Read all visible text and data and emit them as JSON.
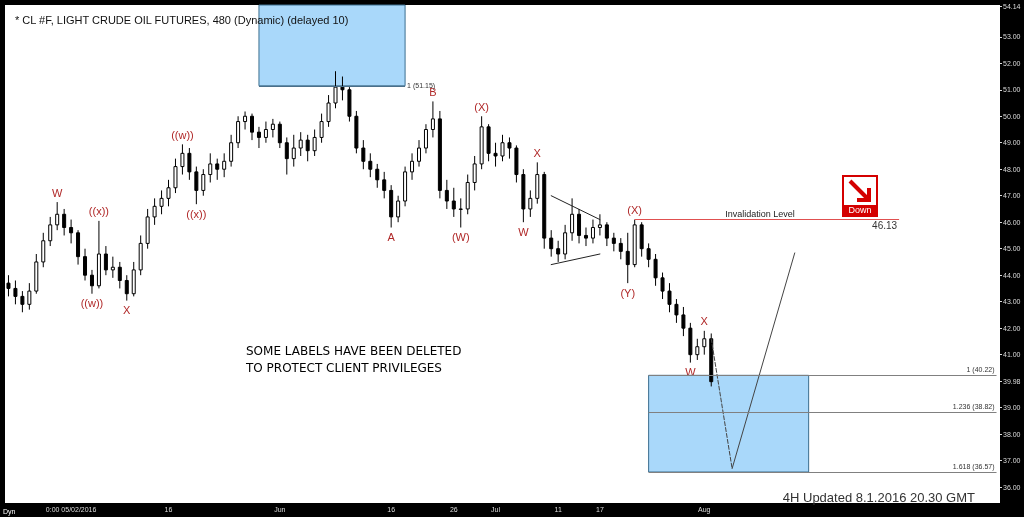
{
  "chart_data": {
    "type": "candlestick",
    "title": "* CL #F, LIGHT CRUDE OIL FUTURES, 480 (Dynamic) (delayed 10)",
    "categories": [
      null,
      null,
      null,
      null,
      null,
      null,
      null,
      null,
      null,
      "0:00 05/02/2016",
      null,
      null,
      null,
      null,
      null,
      null,
      null,
      null,
      null,
      null,
      null,
      null,
      null,
      "16",
      null,
      null,
      null,
      null,
      null,
      null,
      null,
      null,
      null,
      null,
      null,
      null,
      null,
      null,
      null,
      "Jun",
      null,
      null,
      null,
      null,
      null,
      null,
      null,
      null,
      null,
      null,
      null,
      null,
      null,
      null,
      null,
      "16",
      null,
      null,
      null,
      null,
      null,
      null,
      null,
      null,
      "26",
      null,
      null,
      null,
      null,
      null,
      "Jul",
      null,
      null,
      null,
      null,
      null,
      null,
      null,
      null,
      "11",
      null,
      null,
      null,
      null,
      null,
      "17",
      null,
      null,
      null,
      null,
      null,
      null,
      null,
      null,
      null,
      null,
      null,
      null,
      null,
      null,
      "Aug",
      null,
      null,
      null,
      null,
      null,
      null,
      null,
      null,
      null,
      null,
      null,
      null,
      null,
      null,
      null,
      null,
      null,
      null,
      null,
      null,
      null,
      null,
      null,
      null,
      null,
      null,
      null,
      null,
      null,
      null,
      null,
      null,
      null,
      null,
      null,
      null,
      null,
      null,
      null,
      null,
      null,
      null
    ],
    "ohlc": [
      [
        43.7,
        44.0,
        43.2,
        43.5
      ],
      [
        43.5,
        43.8,
        42.9,
        43.2
      ],
      [
        43.2,
        43.4,
        42.6,
        42.9
      ],
      [
        42.9,
        43.7,
        42.7,
        43.4
      ],
      [
        43.4,
        44.8,
        43.3,
        44.5
      ],
      [
        44.5,
        45.6,
        44.3,
        45.3
      ],
      [
        45.3,
        46.2,
        45.1,
        45.9
      ],
      [
        45.9,
        46.76,
        45.7,
        46.3
      ],
      [
        46.3,
        46.5,
        45.5,
        45.8
      ],
      [
        45.8,
        46.1,
        45.2,
        45.6
      ],
      [
        45.6,
        45.7,
        44.4,
        44.7
      ],
      [
        44.7,
        45.0,
        43.8,
        44.0
      ],
      [
        44.0,
        44.2,
        43.3,
        43.6
      ],
      [
        43.6,
        46.05,
        43.5,
        44.8
      ],
      [
        44.8,
        45.1,
        44.0,
        44.2
      ],
      [
        44.2,
        44.7,
        43.9,
        44.3
      ],
      [
        44.3,
        44.5,
        43.5,
        43.8
      ],
      [
        43.8,
        44.0,
        43.04,
        43.3
      ],
      [
        43.3,
        44.5,
        43.2,
        44.2
      ],
      [
        44.2,
        45.5,
        44.0,
        45.2
      ],
      [
        45.2,
        46.5,
        45.0,
        46.2
      ],
      [
        46.2,
        46.9,
        45.9,
        46.6
      ],
      [
        46.6,
        47.2,
        46.3,
        46.9
      ],
      [
        46.9,
        47.6,
        46.6,
        47.3
      ],
      [
        47.3,
        48.4,
        47.1,
        48.1
      ],
      [
        48.1,
        48.94,
        47.8,
        48.6
      ],
      [
        48.6,
        48.8,
        47.6,
        47.9
      ],
      [
        47.9,
        48.1,
        46.68,
        47.2
      ],
      [
        47.2,
        48.0,
        47.0,
        47.8
      ],
      [
        47.8,
        48.6,
        47.5,
        48.2
      ],
      [
        48.2,
        48.4,
        47.6,
        48.0
      ],
      [
        48.0,
        48.6,
        47.7,
        48.3
      ],
      [
        48.3,
        49.3,
        48.1,
        49.0
      ],
      [
        49.0,
        50.0,
        48.8,
        49.8
      ],
      [
        49.8,
        50.18,
        49.5,
        50.0
      ],
      [
        50.0,
        50.1,
        49.1,
        49.4
      ],
      [
        49.4,
        49.6,
        48.8,
        49.2
      ],
      [
        49.2,
        49.8,
        49.0,
        49.5
      ],
      [
        49.5,
        49.9,
        49.2,
        49.7
      ],
      [
        49.7,
        49.8,
        48.8,
        49.0
      ],
      [
        49.0,
        49.2,
        47.8,
        48.4
      ],
      [
        48.4,
        49.3,
        48.1,
        48.8
      ],
      [
        48.8,
        49.4,
        48.5,
        49.1
      ],
      [
        49.1,
        49.3,
        48.3,
        48.7
      ],
      [
        48.7,
        49.5,
        48.5,
        49.2
      ],
      [
        49.2,
        50.1,
        49.0,
        49.8
      ],
      [
        49.8,
        50.8,
        49.6,
        50.5
      ],
      [
        50.5,
        51.7,
        50.3,
        51.1
      ],
      [
        51.1,
        51.5,
        50.6,
        51.0
      ],
      [
        51.0,
        51.1,
        49.8,
        50.0
      ],
      [
        50.0,
        50.2,
        48.6,
        48.8
      ],
      [
        48.8,
        49.1,
        48.0,
        48.3
      ],
      [
        48.3,
        48.6,
        47.7,
        48.0
      ],
      [
        48.0,
        48.2,
        47.3,
        47.6
      ],
      [
        47.6,
        47.9,
        46.9,
        47.2
      ],
      [
        47.2,
        47.4,
        45.8,
        46.2
      ],
      [
        46.2,
        47.0,
        46.0,
        46.8
      ],
      [
        46.8,
        48.1,
        46.6,
        47.9
      ],
      [
        47.9,
        48.6,
        47.6,
        48.3
      ],
      [
        48.3,
        49.1,
        48.1,
        48.8
      ],
      [
        48.8,
        49.7,
        48.6,
        49.5
      ],
      [
        49.5,
        50.56,
        49.2,
        49.9
      ],
      [
        49.9,
        50.2,
        46.9,
        47.2
      ],
      [
        47.2,
        47.6,
        46.5,
        46.8
      ],
      [
        46.8,
        47.3,
        46.2,
        46.5
      ],
      [
        46.5,
        46.9,
        45.8,
        46.5
      ],
      [
        46.5,
        47.8,
        46.3,
        47.5
      ],
      [
        47.5,
        48.5,
        47.2,
        48.2
      ],
      [
        48.2,
        50.0,
        48.0,
        49.6
      ],
      [
        49.6,
        49.7,
        48.3,
        48.6
      ],
      [
        48.6,
        49.0,
        48.1,
        48.5
      ],
      [
        48.5,
        49.3,
        48.3,
        49.0
      ],
      [
        49.0,
        49.2,
        48.4,
        48.8
      ],
      [
        48.8,
        48.9,
        47.5,
        47.8
      ],
      [
        47.8,
        48.0,
        46.0,
        46.5
      ],
      [
        46.5,
        47.2,
        46.2,
        46.9
      ],
      [
        46.9,
        48.26,
        46.7,
        47.8
      ],
      [
        47.8,
        47.9,
        45.0,
        45.4
      ],
      [
        45.4,
        45.7,
        44.7,
        45.0
      ],
      [
        45.0,
        45.3,
        44.5,
        44.8
      ],
      [
        44.8,
        45.9,
        44.6,
        45.6
      ],
      [
        45.6,
        46.9,
        45.3,
        46.3
      ],
      [
        46.3,
        46.5,
        45.2,
        45.5
      ],
      [
        45.5,
        45.8,
        45.1,
        45.4
      ],
      [
        45.4,
        46.1,
        45.2,
        45.8
      ],
      [
        45.8,
        46.3,
        45.5,
        45.9
      ],
      [
        45.9,
        46.0,
        45.1,
        45.4
      ],
      [
        45.4,
        45.6,
        44.9,
        45.2
      ],
      [
        45.2,
        45.4,
        44.6,
        44.9
      ],
      [
        44.9,
        45.6,
        43.7,
        44.4
      ],
      [
        44.4,
        46.1,
        44.3,
        45.9
      ],
      [
        45.9,
        46.0,
        44.7,
        45.0
      ],
      [
        45.0,
        45.2,
        44.3,
        44.6
      ],
      [
        44.6,
        44.8,
        43.6,
        43.9
      ],
      [
        43.9,
        44.1,
        43.1,
        43.4
      ],
      [
        43.4,
        43.7,
        42.6,
        42.9
      ],
      [
        42.9,
        43.1,
        42.2,
        42.5
      ],
      [
        42.5,
        42.8,
        41.7,
        42.0
      ],
      [
        42.0,
        42.2,
        40.7,
        41.0
      ],
      [
        41.0,
        41.6,
        40.8,
        41.3
      ],
      [
        41.3,
        41.9,
        41.0,
        41.6
      ],
      [
        41.6,
        41.8,
        39.8,
        39.98
      ],
      null,
      null,
      null,
      null,
      null,
      null,
      null,
      null,
      null,
      null,
      null,
      null,
      null,
      null,
      null,
      null,
      null,
      null,
      null,
      null,
      null,
      null,
      null,
      null,
      null,
      null,
      null,
      null,
      null,
      null,
      null,
      null,
      null,
      null,
      null,
      null,
      null,
      null,
      null,
      null,
      null
    ],
    "series": [
      {
        "type": "line",
        "color": "#444444",
        "line_style": "dashed",
        "values": [
          null,
          null,
          null,
          null,
          null,
          null,
          null,
          null,
          null,
          null,
          null,
          null,
          null,
          null,
          null,
          null,
          null,
          null,
          null,
          null,
          null,
          null,
          null,
          null,
          null,
          null,
          null,
          null,
          null,
          null,
          null,
          null,
          null,
          null,
          null,
          null,
          null,
          null,
          null,
          null,
          null,
          null,
          null,
          null,
          null,
          null,
          null,
          null,
          null,
          null,
          null,
          null,
          null,
          null,
          null,
          null,
          null,
          null,
          null,
          null,
          null,
          null,
          null,
          null,
          null,
          null,
          null,
          null,
          null,
          null,
          null,
          null,
          null,
          null,
          null,
          null,
          null,
          null,
          null,
          null,
          null,
          null,
          null,
          null,
          null,
          null,
          null,
          null,
          null,
          null,
          null,
          null,
          null,
          null,
          null,
          null,
          null,
          null,
          null,
          null,
          null,
          41.6,
          null,
          null,
          36.7,
          null,
          null,
          null,
          null,
          null,
          null,
          null,
          null,
          null,
          null,
          null,
          null,
          null,
          null,
          null,
          null,
          null,
          null,
          null,
          null,
          null,
          null,
          null,
          null,
          null,
          null,
          null,
          null,
          null,
          null,
          null,
          null,
          null,
          null,
          null,
          null,
          null,
          null
        ]
      },
      {
        "type": "line",
        "color": "#444444",
        "line_style": "solid",
        "values": [
          null,
          null,
          null,
          null,
          null,
          null,
          null,
          null,
          null,
          null,
          null,
          null,
          null,
          null,
          null,
          null,
          null,
          null,
          null,
          null,
          null,
          null,
          null,
          null,
          null,
          null,
          null,
          null,
          null,
          null,
          null,
          null,
          null,
          null,
          null,
          null,
          null,
          null,
          null,
          null,
          null,
          null,
          null,
          null,
          null,
          null,
          null,
          null,
          null,
          null,
          null,
          null,
          null,
          null,
          null,
          null,
          null,
          null,
          null,
          null,
          null,
          null,
          null,
          null,
          null,
          null,
          null,
          null,
          null,
          null,
          null,
          null,
          null,
          null,
          null,
          null,
          null,
          null,
          null,
          null,
          null,
          null,
          null,
          null,
          null,
          null,
          null,
          null,
          null,
          null,
          null,
          null,
          null,
          null,
          null,
          null,
          null,
          null,
          null,
          null,
          null,
          null,
          null,
          null,
          36.7,
          null,
          null,
          null,
          null,
          null,
          null,
          null,
          null,
          44.84,
          null,
          null,
          null,
          null,
          null,
          null,
          null,
          null,
          null,
          null,
          null,
          null,
          null,
          null,
          null,
          null,
          null,
          null,
          null,
          null,
          null,
          null,
          null,
          null,
          null,
          null,
          null,
          null,
          null
        ]
      },
      {
        "type": "line",
        "color": "#222222",
        "line_style": "solid",
        "values": [
          null,
          null,
          null,
          null,
          null,
          null,
          null,
          null,
          null,
          null,
          null,
          null,
          null,
          null,
          null,
          null,
          null,
          null,
          null,
          null,
          null,
          null,
          null,
          null,
          null,
          null,
          null,
          null,
          null,
          null,
          null,
          null,
          null,
          null,
          null,
          null,
          null,
          null,
          null,
          null,
          null,
          null,
          null,
          null,
          null,
          null,
          null,
          null,
          null,
          null,
          null,
          null,
          null,
          null,
          null,
          null,
          null,
          null,
          null,
          null,
          null,
          null,
          null,
          null,
          null,
          null,
          null,
          null,
          null,
          null,
          null,
          null,
          null,
          null,
          null,
          null,
          null,
          null,
          47.0,
          null,
          null,
          null,
          null,
          null,
          null,
          46.1,
          null,
          null,
          null,
          null,
          null,
          null,
          null,
          null,
          null,
          null,
          null,
          null,
          null,
          null,
          null,
          null,
          null,
          null,
          null,
          null,
          null,
          null,
          null,
          null,
          null,
          null,
          null,
          null,
          null,
          null,
          null,
          null,
          null,
          null,
          null,
          null,
          null,
          null,
          null,
          null,
          null,
          null,
          null,
          null,
          null,
          null,
          null,
          null,
          null,
          null,
          null,
          null,
          null,
          null,
          null,
          null,
          null
        ]
      },
      {
        "type": "line",
        "color": "#222222",
        "line_style": "solid",
        "values": [
          null,
          null,
          null,
          null,
          null,
          null,
          null,
          null,
          null,
          null,
          null,
          null,
          null,
          null,
          null,
          null,
          null,
          null,
          null,
          null,
          null,
          null,
          null,
          null,
          null,
          null,
          null,
          null,
          null,
          null,
          null,
          null,
          null,
          null,
          null,
          null,
          null,
          null,
          null,
          null,
          null,
          null,
          null,
          null,
          null,
          null,
          null,
          null,
          null,
          null,
          null,
          null,
          null,
          null,
          null,
          null,
          null,
          null,
          null,
          null,
          null,
          null,
          null,
          null,
          null,
          null,
          null,
          null,
          null,
          null,
          null,
          null,
          null,
          null,
          null,
          null,
          null,
          null,
          44.4,
          null,
          null,
          null,
          null,
          null,
          null,
          44.8,
          null,
          null,
          null,
          null,
          null,
          null,
          null,
          null,
          null,
          null,
          null,
          null,
          null,
          null,
          null,
          null,
          null,
          null,
          null,
          null,
          null,
          null,
          null,
          null,
          null,
          null,
          null,
          null,
          null,
          null,
          null,
          null,
          null,
          null,
          null,
          null,
          null,
          null,
          null,
          null,
          null,
          null,
          null,
          null,
          null,
          null,
          null,
          null,
          null,
          null,
          null,
          null,
          null,
          null,
          null,
          null,
          null
        ]
      }
    ],
    "ylim": [
      35.4,
      54.2
    ],
    "yticks": [
      {
        "value": 36,
        "label": "36.00"
      },
      {
        "value": 37,
        "label": "37.00"
      },
      {
        "value": 38,
        "label": "38.00"
      },
      {
        "value": 39,
        "label": "39.00"
      },
      {
        "value": 39.98,
        "label": "39.98"
      },
      {
        "value": 41,
        "label": "41.00"
      },
      {
        "value": 42,
        "label": "42.00"
      },
      {
        "value": 43,
        "label": "43.00"
      },
      {
        "value": 44,
        "label": "44.00"
      },
      {
        "value": 45,
        "label": "45.00"
      },
      {
        "value": 46,
        "label": "46.00"
      },
      {
        "value": 47,
        "label": "47.00"
      },
      {
        "value": 48,
        "label": "48.00"
      },
      {
        "value": 49,
        "label": "49.00"
      },
      {
        "value": 50,
        "label": "50.00"
      },
      {
        "value": 51,
        "label": "51.00"
      },
      {
        "value": 52,
        "label": "52.00"
      },
      {
        "value": 53,
        "label": "53.00"
      },
      {
        "value": 54.14,
        "label": "54.14"
      }
    ],
    "ref_lines": [
      {
        "axis": "y",
        "value": 51.15,
        "label": "1 (51.15)",
        "color": "#4a6f8a"
      },
      {
        "axis": "y",
        "value": 46.13,
        "label": "46.13",
        "color": "#e05050"
      },
      {
        "axis": "y",
        "value": 40.22,
        "label": "1 (40.22)",
        "color": "#808080"
      },
      {
        "axis": "y",
        "value": 38.82,
        "label": "1.236 (38.82)",
        "color": "#808080"
      },
      {
        "axis": "y",
        "value": 36.57,
        "label": "1.618 (36.57)",
        "color": "#808080"
      }
    ],
    "bands": [
      {
        "axis": "y",
        "from": 51.15,
        "to": 54.2,
        "color": "#a9d8fa"
      },
      {
        "axis": "y",
        "from": 36.57,
        "to": 40.22,
        "color": "#a9d8fa"
      }
    ],
    "annotations": [
      {
        "text": "W",
        "y": 46.76
      },
      {
        "text": "((w))",
        "y": 43.3
      },
      {
        "text": "((x))",
        "y": 46.05
      },
      {
        "text": "X",
        "y": 43.04
      },
      {
        "text": "((w))",
        "y": 48.94
      },
      {
        "text": "((x))",
        "y": 46.68
      },
      {
        "text": "A",
        "y": 45.8
      },
      {
        "text": "B",
        "y": 50.56
      },
      {
        "text": "(W)",
        "y": 45.8
      },
      {
        "text": "(X)",
        "y": 50.0
      },
      {
        "text": "W",
        "y": 46.0
      },
      {
        "text": "X",
        "y": 48.26
      },
      {
        "text": "(Y)",
        "y": 43.7
      },
      {
        "text": "(X)",
        "y": 46.1
      },
      {
        "text": "W",
        "y": 40.7
      },
      {
        "text": "X",
        "y": 41.9
      },
      "SOME LABELS HAVE BEEN DELETED\nTO PROTECT CLIENT PRIVILEGES",
      "Invalidation Level",
      "Down",
      "4H Updated 8.1.2016 20.30 GMT",
      "Dyn"
    ]
  }
}
